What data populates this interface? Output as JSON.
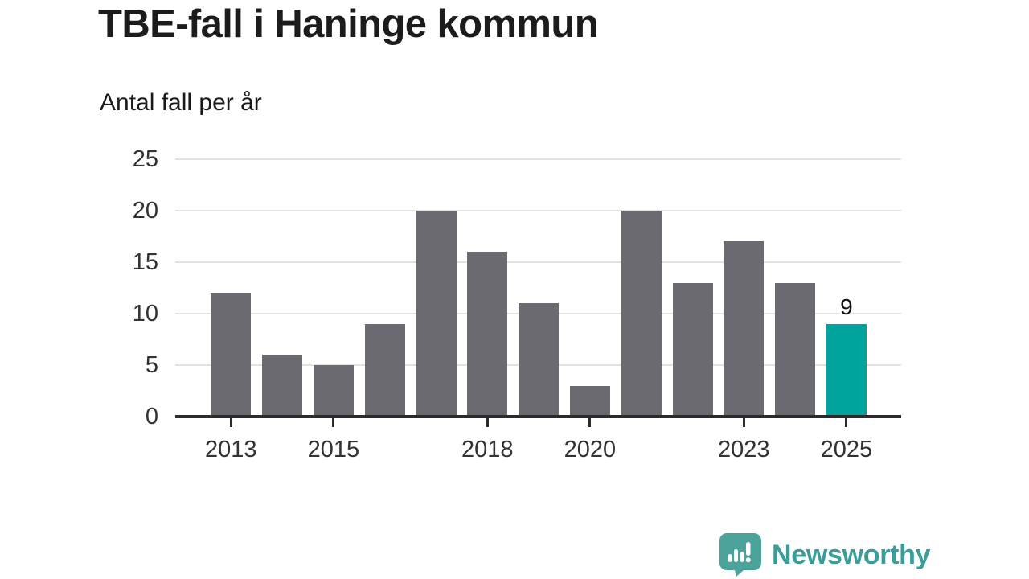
{
  "header": {
    "title": "TBE-fall i Haninge kommun",
    "subtitle": "Antal fall per år"
  },
  "chart_data": {
    "type": "bar",
    "title": "TBE-fall i Haninge kommun",
    "subtitle": "Antal fall per år",
    "categories": [
      "2013",
      "2014",
      "2015",
      "2016",
      "2017",
      "2018",
      "2019",
      "2020",
      "2021",
      "2022",
      "2023",
      "2024",
      "2025"
    ],
    "values": [
      12,
      6,
      5,
      9,
      20,
      16,
      11,
      3,
      20,
      13,
      17,
      13,
      9
    ],
    "highlight": {
      "category": "2025",
      "value": 9,
      "label": "9"
    },
    "y_ticks": [
      0,
      5,
      10,
      15,
      20,
      25
    ],
    "ylim": [
      0,
      25
    ],
    "x_labeled_categories": [
      "2013",
      "2015",
      "2018",
      "2020",
      "2023",
      "2025"
    ],
    "grid": "horizontal",
    "legend": "none",
    "colors": {
      "bar": "#6b6a70",
      "highlight": "#00a49c",
      "gridline": "#e2e2e2",
      "axis": "#2b2b2b",
      "tick_label": "#333333",
      "value_label": "#111111"
    }
  },
  "footer": {
    "brand": "Newsworthy",
    "brand_text_color": "#3b9d99",
    "logo_icon_color": "#4ba39c",
    "logo_icon": "newsworthy-speech-bubble-bar-chart-icon"
  }
}
